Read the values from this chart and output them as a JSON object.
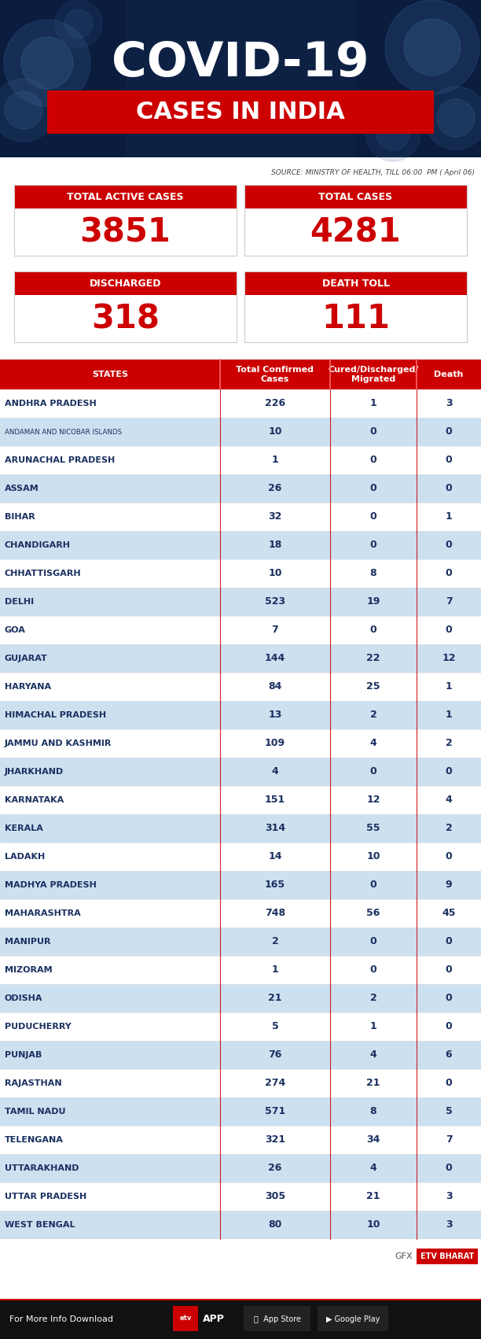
{
  "title1": "COVID-19",
  "title2": "CASES IN INDIA",
  "source": "SOURCE: MINISTRY OF HEALTH, TILL 06:00  PM ( April 06)",
  "box_labels": [
    "TOTAL ACTIVE CASES",
    "TOTAL CASES",
    "DISCHARGED",
    "DEATH TOLL"
  ],
  "box_values": [
    "3851",
    "4281",
    "318",
    "111"
  ],
  "col_headers": [
    "STATES",
    "Total Confirmed\nCases",
    "Cured/Discharged/\nMigrated",
    "Death"
  ],
  "states": [
    "ANDHRA PRADESH",
    "ANDAMAN AND NICOBAR ISLANDS",
    "ARUNACHAL PRADESH",
    "ASSAM",
    "BIHAR",
    "CHANDIGARH",
    "CHHATTISGARH",
    "DELHI",
    "GOA",
    "GUJARAT",
    "HARYANA",
    "HIMACHAL PRADESH",
    "JAMMU AND KASHMIR",
    "JHARKHAND",
    "KARNATAKA",
    "KERALA",
    "LADAKH",
    "MADHYA PRADESH",
    "MAHARASHTRA",
    "MANIPUR",
    "MIZORAM",
    "ODISHA",
    "PUDUCHERRY",
    "PUNJAB",
    "RAJASTHAN",
    "TAMIL NADU",
    "TELENGANA",
    "UTTARAKHAND",
    "UTTAR PRADESH",
    "WEST BENGAL"
  ],
  "confirmed": [
    226,
    10,
    1,
    26,
    32,
    18,
    10,
    523,
    7,
    144,
    84,
    13,
    109,
    4,
    151,
    314,
    14,
    165,
    748,
    2,
    1,
    21,
    5,
    76,
    274,
    571,
    321,
    26,
    305,
    80
  ],
  "cured": [
    1,
    0,
    0,
    0,
    0,
    0,
    8,
    19,
    0,
    22,
    25,
    2,
    4,
    0,
    12,
    55,
    10,
    0,
    56,
    0,
    0,
    2,
    1,
    4,
    21,
    8,
    34,
    4,
    21,
    10
  ],
  "death": [
    3,
    0,
    0,
    0,
    1,
    0,
    0,
    7,
    0,
    12,
    1,
    1,
    2,
    0,
    4,
    2,
    0,
    9,
    45,
    0,
    0,
    0,
    0,
    6,
    0,
    5,
    7,
    0,
    3,
    3
  ],
  "red": "#cc0000",
  "dark_blue": "#0d2144",
  "navy": "#152a52",
  "text_blue": "#1a3060",
  "white": "#ffffff",
  "light_row": "#cce0f0",
  "dark_row": "#ffffff",
  "divider_red": "#cc2222",
  "footer_bg": "#111111",
  "gfx_color": "#555555",
  "etv_bg": "#cc0000"
}
